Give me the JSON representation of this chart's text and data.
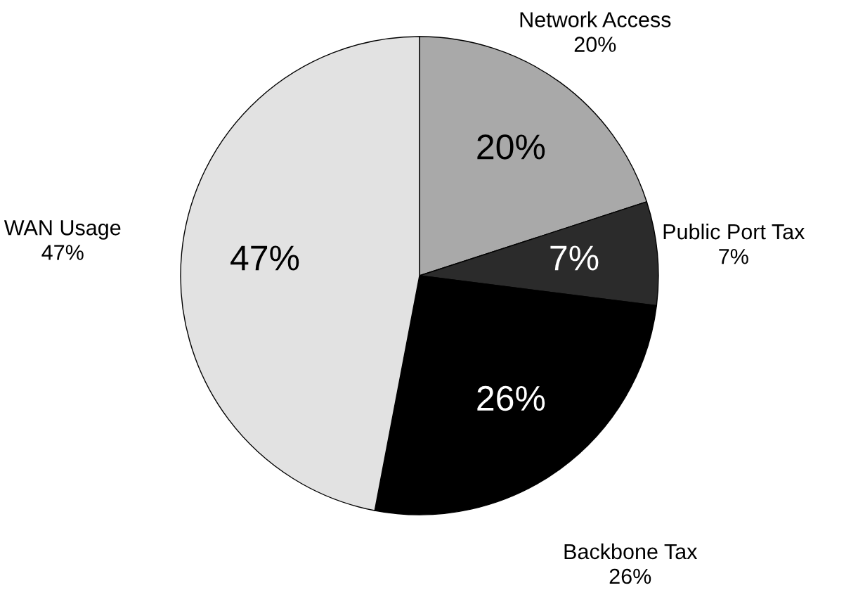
{
  "chart_data": {
    "type": "pie",
    "categories": [
      "Network Access",
      "Public Port Tax",
      "Backbone Tax",
      "WAN Usage"
    ],
    "values": [
      20,
      7,
      26,
      47
    ],
    "value_labels": [
      "20%",
      "7%",
      "26%",
      "47%"
    ],
    "colors": [
      "#a9a9a9",
      "#2b2b2b",
      "#000000",
      "#e2e2e2"
    ]
  }
}
